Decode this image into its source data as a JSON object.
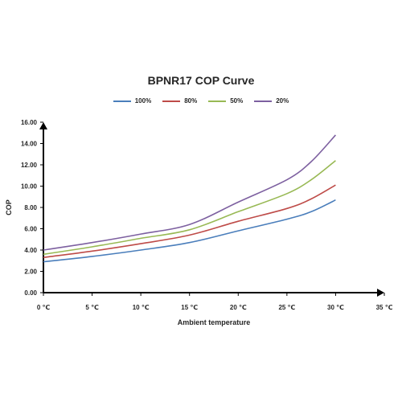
{
  "chart_data": {
    "type": "line",
    "title": "BPNR17 COP Curve",
    "xlabel": "Ambient temperature",
    "ylabel": "COP",
    "xlim": [
      0,
      35
    ],
    "ylim": [
      0,
      16
    ],
    "x_ticks": [
      0,
      5,
      10,
      15,
      20,
      25,
      30,
      35
    ],
    "x_tick_labels": [
      "0 ℃",
      "5 ℃",
      "10 ℃",
      "15 ℃",
      "20 ℃",
      "25 ℃",
      "30 ℃",
      "35 ℃"
    ],
    "y_ticks": [
      0,
      2,
      4,
      6,
      8,
      10,
      12,
      14,
      16
    ],
    "y_tick_labels": [
      "0.00",
      "2.00",
      "4.00",
      "6.00",
      "8.00",
      "10.00",
      "12.00",
      "14.00",
      "16.00"
    ],
    "grid": false,
    "legend_position": "top",
    "x": [
      0,
      5,
      10,
      15,
      20,
      25,
      27.5,
      30
    ],
    "series": [
      {
        "name": "100%",
        "color": "#4a7ebb",
        "values": [
          2.9,
          3.4,
          4.0,
          4.7,
          5.8,
          6.9,
          7.6,
          8.7
        ]
      },
      {
        "name": "80%",
        "color": "#be4b48",
        "values": [
          3.3,
          3.9,
          4.6,
          5.4,
          6.7,
          7.9,
          8.8,
          10.1
        ]
      },
      {
        "name": "50%",
        "color": "#98b954",
        "values": [
          3.6,
          4.3,
          5.1,
          5.9,
          7.6,
          9.3,
          10.6,
          12.4
        ]
      },
      {
        "name": "20%",
        "color": "#7d60a0",
        "values": [
          4.0,
          4.7,
          5.5,
          6.4,
          8.5,
          10.6,
          12.3,
          14.8
        ]
      }
    ]
  }
}
